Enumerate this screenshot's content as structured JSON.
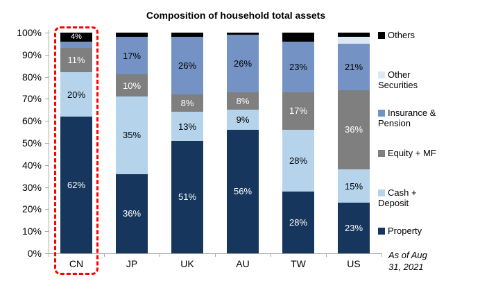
{
  "title": "Composition of household total assets",
  "note_lines": [
    "As of Aug",
    "31, 2021"
  ],
  "chart_data": {
    "type": "bar",
    "stacked": true,
    "title": "Composition of household total assets",
    "xlabel": "",
    "ylabel": "",
    "ylim": [
      0,
      100
    ],
    "grid": false,
    "legend_position": "right",
    "categories": [
      "CN",
      "JP",
      "UK",
      "AU",
      "TW",
      "US"
    ],
    "y_ticks": [
      "0%",
      "10%",
      "20%",
      "30%",
      "40%",
      "50%",
      "60%",
      "70%",
      "80%",
      "90%",
      "100%"
    ],
    "series": [
      {
        "name": "Property",
        "color": "#17365D",
        "label_color": "#ffffff",
        "values": [
          62,
          36,
          51,
          56,
          28,
          23
        ],
        "labels": [
          "62%",
          "36%",
          "51%",
          "56%",
          "28%",
          "23%"
        ]
      },
      {
        "name": "Cash + Deposit",
        "color": "#B5D4EC",
        "label_color": "#000000",
        "values": [
          20,
          35,
          13,
          9,
          28,
          15
        ],
        "labels": [
          "20%",
          "35%",
          "13%",
          "9%",
          "28%",
          "15%"
        ]
      },
      {
        "name": "Equity + MF",
        "color": "#7F7F7F",
        "label_color": "#ffffff",
        "values": [
          11,
          10,
          8,
          8,
          17,
          36
        ],
        "labels": [
          "11%",
          "10%",
          "8%",
          "8%",
          "17%",
          "36%"
        ]
      },
      {
        "name": "Insurance & Pension",
        "color": "#7493C4",
        "label_color": "#000000",
        "values": [
          3,
          17,
          26,
          26,
          23,
          21
        ],
        "labels": [
          "",
          "17%",
          "26%",
          "26%",
          "23%",
          "21%"
        ]
      },
      {
        "name": "Other Securities",
        "color": "#DCE9F5",
        "label_color": "#000000",
        "values": [
          0,
          0,
          0,
          0,
          0,
          3
        ],
        "labels": [
          "",
          "",
          "",
          "",
          "",
          ""
        ]
      },
      {
        "name": "Others",
        "color": "#000000",
        "label_color": "#ffffff",
        "values": [
          4,
          2,
          2,
          1,
          4,
          2
        ],
        "labels": [
          "4%",
          "",
          "",
          "",
          "",
          ""
        ]
      }
    ],
    "highlight": {
      "category": "CN",
      "color": "#ff0000"
    }
  }
}
